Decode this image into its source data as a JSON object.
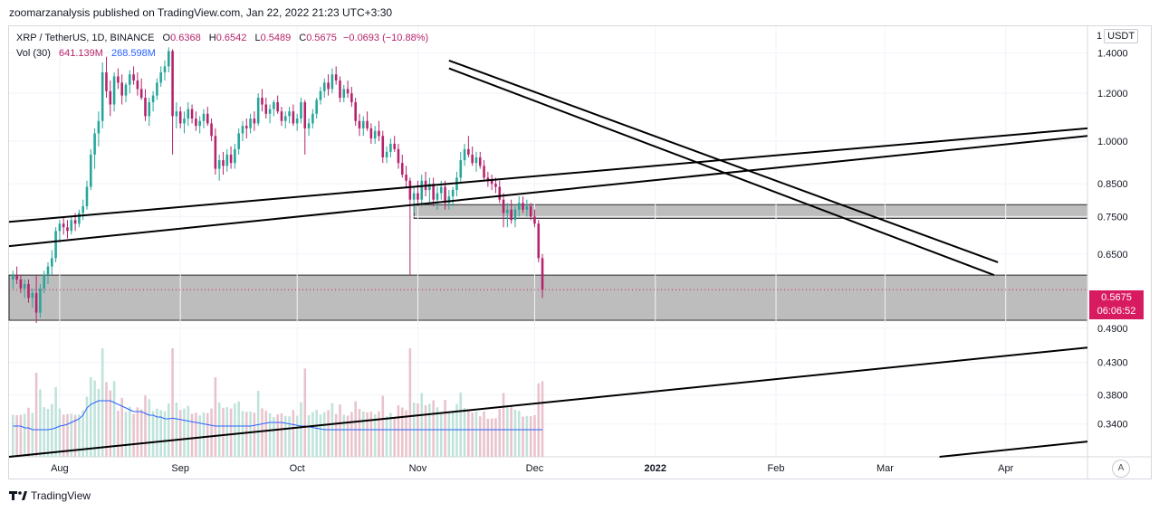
{
  "publisher_line": "zoomarzanalysis published on TradingView.com, Jan 22, 2022 21:23 UTC+3:30",
  "legend": {
    "symbol": "XRP / TetherUS, 1D, BINANCE",
    "open_label": "O",
    "open": "0.6368",
    "high_label": "H",
    "high": "0.6542",
    "low_label": "L",
    "low": "0.5489",
    "close_label": "C",
    "close": "0.5675",
    "change": "−0.0693 (−10.88%)",
    "vol_label": "Vol (30)",
    "vol_value": "641.139M",
    "vol_ma": "268.598M"
  },
  "unit_prefix": "1",
  "unit": "USDT",
  "last_price": "0.5675",
  "countdown": "06:06:52",
  "auto_scale_label": "A",
  "brand": "TradingView",
  "colors": {
    "up": "#26a69a",
    "down": "#b6236b",
    "up_volume": "#bfe3db",
    "down_volume": "#e9c3cc",
    "volume_ma": "#2962ff",
    "zone_fill": "#b2b2b2",
    "trendline": "#000000",
    "price_line": "#d81b60"
  },
  "chart_data": {
    "type": "candlestick",
    "scale": "log",
    "y_ticks": [
      "1.4000",
      "1.2000",
      "1.0000",
      "0.8500",
      "0.7500",
      "0.6500",
      "0.5675",
      "0.4900",
      "0.4300",
      "0.3800",
      "0.3400"
    ],
    "x_ticks": [
      "Aug",
      "Sep",
      "Oct",
      "Nov",
      "Dec",
      "2022",
      "Feb",
      "Mar",
      "Apr"
    ],
    "x_range": [
      "2021-07-19",
      "2022-04-22"
    ],
    "y_range": [
      0.3,
      1.55
    ],
    "zones": [
      {
        "low": 0.505,
        "high": 0.6
      },
      {
        "low": 0.745,
        "high": 0.785
      }
    ],
    "trendlines": [
      {
        "from": [
          "2021-07-19",
          0.735
        ],
        "to": [
          "2022-04-22",
          1.05
        ]
      },
      {
        "from": [
          "2021-07-19",
          0.67
        ],
        "to": [
          "2022-04-22",
          1.02
        ]
      },
      {
        "from": [
          "2021-11-09",
          1.36
        ],
        "to": [
          "2022-03-30",
          0.63
        ]
      },
      {
        "from": [
          "2021-11-09",
          1.32
        ],
        "to": [
          "2022-03-29",
          0.6
        ]
      },
      {
        "from": [
          "2021-07-19",
          0.3
        ],
        "to": [
          "2022-04-22",
          0.455
        ]
      },
      {
        "from": [
          "2022-03-15",
          0.3
        ],
        "to": [
          "2022-04-22",
          0.318
        ]
      }
    ],
    "candles_start": "2021-07-20",
    "ohlc": [
      [
        0.59,
        0.61,
        0.57,
        0.6
      ],
      [
        0.6,
        0.62,
        0.58,
        0.59
      ],
      [
        0.59,
        0.6,
        0.56,
        0.57
      ],
      [
        0.57,
        0.59,
        0.55,
        0.58
      ],
      [
        0.58,
        0.59,
        0.54,
        0.55
      ],
      [
        0.55,
        0.57,
        0.53,
        0.56
      ],
      [
        0.56,
        0.6,
        0.5,
        0.52
      ],
      [
        0.52,
        0.58,
        0.51,
        0.57
      ],
      [
        0.57,
        0.61,
        0.56,
        0.6
      ],
      [
        0.6,
        0.63,
        0.58,
        0.62
      ],
      [
        0.62,
        0.66,
        0.6,
        0.64
      ],
      [
        0.64,
        0.72,
        0.63,
        0.71
      ],
      [
        0.71,
        0.74,
        0.68,
        0.73
      ],
      [
        0.73,
        0.75,
        0.7,
        0.72
      ],
      [
        0.72,
        0.74,
        0.69,
        0.71
      ],
      [
        0.71,
        0.75,
        0.7,
        0.74
      ],
      [
        0.74,
        0.76,
        0.71,
        0.73
      ],
      [
        0.73,
        0.77,
        0.72,
        0.76
      ],
      [
        0.76,
        0.8,
        0.74,
        0.78
      ],
      [
        0.78,
        0.86,
        0.77,
        0.84
      ],
      [
        0.84,
        0.97,
        0.83,
        0.95
      ],
      [
        0.95,
        1.05,
        0.9,
        1.03
      ],
      [
        1.03,
        1.12,
        0.98,
        1.08
      ],
      [
        1.08,
        1.35,
        1.05,
        1.3
      ],
      [
        1.3,
        1.38,
        1.18,
        1.21
      ],
      [
        1.21,
        1.26,
        1.1,
        1.15
      ],
      [
        1.15,
        1.3,
        1.12,
        1.28
      ],
      [
        1.28,
        1.32,
        1.22,
        1.25
      ],
      [
        1.25,
        1.29,
        1.15,
        1.19
      ],
      [
        1.19,
        1.25,
        1.16,
        1.24
      ],
      [
        1.24,
        1.31,
        1.2,
        1.29
      ],
      [
        1.29,
        1.33,
        1.24,
        1.26
      ],
      [
        1.26,
        1.3,
        1.19,
        1.22
      ],
      [
        1.22,
        1.27,
        1.17,
        1.18
      ],
      [
        1.18,
        1.22,
        1.08,
        1.1
      ],
      [
        1.1,
        1.18,
        1.06,
        1.16
      ],
      [
        1.16,
        1.21,
        1.12,
        1.19
      ],
      [
        1.19,
        1.27,
        1.17,
        1.25
      ],
      [
        1.25,
        1.33,
        1.23,
        1.3
      ],
      [
        1.3,
        1.36,
        1.26,
        1.33
      ],
      [
        1.33,
        1.43,
        1.3,
        1.41
      ],
      [
        1.41,
        1.42,
        0.95,
        1.1
      ],
      [
        1.1,
        1.16,
        1.05,
        1.12
      ],
      [
        1.12,
        1.14,
        1.05,
        1.07
      ],
      [
        1.07,
        1.12,
        1.03,
        1.09
      ],
      [
        1.09,
        1.16,
        1.06,
        1.13
      ],
      [
        1.13,
        1.15,
        1.07,
        1.09
      ],
      [
        1.09,
        1.12,
        1.04,
        1.06
      ],
      [
        1.06,
        1.1,
        1.03,
        1.08
      ],
      [
        1.08,
        1.13,
        1.05,
        1.11
      ],
      [
        1.11,
        1.14,
        1.06,
        1.07
      ],
      [
        1.07,
        1.09,
        1.0,
        1.02
      ],
      [
        1.02,
        1.05,
        0.88,
        0.9
      ],
      [
        0.9,
        0.95,
        0.86,
        0.93
      ],
      [
        0.93,
        0.96,
        0.88,
        0.91
      ],
      [
        0.91,
        0.97,
        0.89,
        0.95
      ],
      [
        0.95,
        0.98,
        0.9,
        0.92
      ],
      [
        0.92,
        0.99,
        0.9,
        0.97
      ],
      [
        0.97,
        1.05,
        0.95,
        1.03
      ],
      [
        1.03,
        1.08,
        1.0,
        1.06
      ],
      [
        1.06,
        1.09,
        1.01,
        1.05
      ],
      [
        1.05,
        1.11,
        1.03,
        1.09
      ],
      [
        1.09,
        1.12,
        1.04,
        1.07
      ],
      [
        1.07,
        1.2,
        1.06,
        1.18
      ],
      [
        1.18,
        1.22,
        1.12,
        1.15
      ],
      [
        1.15,
        1.18,
        1.09,
        1.11
      ],
      [
        1.11,
        1.15,
        1.07,
        1.13
      ],
      [
        1.13,
        1.17,
        1.1,
        1.16
      ],
      [
        1.16,
        1.19,
        1.11,
        1.12
      ],
      [
        1.12,
        1.14,
        1.06,
        1.08
      ],
      [
        1.08,
        1.12,
        1.05,
        1.1
      ],
      [
        1.1,
        1.14,
        1.07,
        1.12
      ],
      [
        1.12,
        1.15,
        1.06,
        1.07
      ],
      [
        1.07,
        1.11,
        1.04,
        1.09
      ],
      [
        1.09,
        1.18,
        1.07,
        1.16
      ],
      [
        1.16,
        1.17,
        0.95,
        1.05
      ],
      [
        1.05,
        1.09,
        1.02,
        1.07
      ],
      [
        1.07,
        1.13,
        1.05,
        1.11
      ],
      [
        1.11,
        1.18,
        1.09,
        1.17
      ],
      [
        1.17,
        1.23,
        1.15,
        1.21
      ],
      [
        1.21,
        1.27,
        1.18,
        1.25
      ],
      [
        1.25,
        1.29,
        1.19,
        1.22
      ],
      [
        1.22,
        1.32,
        1.2,
        1.29
      ],
      [
        1.29,
        1.33,
        1.24,
        1.26
      ],
      [
        1.26,
        1.28,
        1.16,
        1.18
      ],
      [
        1.18,
        1.24,
        1.16,
        1.22
      ],
      [
        1.22,
        1.26,
        1.18,
        1.2
      ],
      [
        1.2,
        1.23,
        1.14,
        1.16
      ],
      [
        1.16,
        1.18,
        1.06,
        1.08
      ],
      [
        1.08,
        1.11,
        1.02,
        1.05
      ],
      [
        1.05,
        1.1,
        1.02,
        1.08
      ],
      [
        1.08,
        1.12,
        1.04,
        1.05
      ],
      [
        1.05,
        1.07,
        0.99,
        1.01
      ],
      [
        1.01,
        1.06,
        0.99,
        1.04
      ],
      [
        1.04,
        1.08,
        1.0,
        1.02
      ],
      [
        1.02,
        1.04,
        0.92,
        0.94
      ],
      [
        0.94,
        0.98,
        0.92,
        0.96
      ],
      [
        0.96,
        1.01,
        0.94,
        0.99
      ],
      [
        0.99,
        1.02,
        0.96,
        0.97
      ],
      [
        0.97,
        0.99,
        0.9,
        0.92
      ],
      [
        0.92,
        0.95,
        0.87,
        0.88
      ],
      [
        0.88,
        0.91,
        0.84,
        0.86
      ],
      [
        0.86,
        0.87,
        0.6,
        0.8
      ],
      [
        0.8,
        0.84,
        0.76,
        0.82
      ],
      [
        0.82,
        0.86,
        0.78,
        0.8
      ],
      [
        0.8,
        0.88,
        0.78,
        0.86
      ],
      [
        0.86,
        0.89,
        0.81,
        0.83
      ],
      [
        0.83,
        0.87,
        0.79,
        0.85
      ],
      [
        0.85,
        0.87,
        0.78,
        0.8
      ],
      [
        0.8,
        0.84,
        0.77,
        0.82
      ],
      [
        0.82,
        0.86,
        0.8,
        0.84
      ],
      [
        0.84,
        0.86,
        0.77,
        0.79
      ],
      [
        0.79,
        0.83,
        0.77,
        0.81
      ],
      [
        0.81,
        0.84,
        0.78,
        0.83
      ],
      [
        0.83,
        0.89,
        0.81,
        0.87
      ],
      [
        0.87,
        0.96,
        0.85,
        0.93
      ],
      [
        0.93,
        0.99,
        0.91,
        0.97
      ],
      [
        0.97,
        1.02,
        0.94,
        0.95
      ],
      [
        0.95,
        0.98,
        0.91,
        0.92
      ],
      [
        0.92,
        0.96,
        0.89,
        0.94
      ],
      [
        0.94,
        0.96,
        0.9,
        0.91
      ],
      [
        0.91,
        0.93,
        0.86,
        0.87
      ],
      [
        0.87,
        0.89,
        0.84,
        0.86
      ],
      [
        0.86,
        0.88,
        0.83,
        0.85
      ],
      [
        0.85,
        0.87,
        0.82,
        0.84
      ],
      [
        0.84,
        0.86,
        0.79,
        0.8
      ],
      [
        0.8,
        0.82,
        0.72,
        0.76
      ],
      [
        0.76,
        0.79,
        0.72,
        0.77
      ],
      [
        0.77,
        0.8,
        0.73,
        0.74
      ],
      [
        0.74,
        0.78,
        0.72,
        0.77
      ],
      [
        0.77,
        0.81,
        0.75,
        0.79
      ],
      [
        0.79,
        0.81,
        0.76,
        0.77
      ],
      [
        0.77,
        0.8,
        0.75,
        0.78
      ],
      [
        0.78,
        0.79,
        0.74,
        0.75
      ],
      [
        0.75,
        0.77,
        0.72,
        0.73
      ],
      [
        0.73,
        0.74,
        0.63,
        0.64
      ],
      [
        0.64,
        0.65,
        0.55,
        0.5675
      ]
    ],
    "volume_ma": [
      0.36,
      0.36,
      0.36,
      0.355,
      0.355,
      0.35,
      0.35,
      0.35,
      0.35,
      0.35,
      0.352,
      0.355,
      0.36,
      0.362,
      0.365,
      0.37,
      0.375,
      0.38,
      0.39,
      0.41,
      0.42,
      0.425,
      0.43,
      0.43,
      0.43,
      0.43,
      0.425,
      0.42,
      0.415,
      0.41,
      0.405,
      0.4,
      0.4,
      0.4,
      0.395,
      0.39,
      0.39,
      0.385,
      0.385,
      0.38,
      0.38,
      0.382,
      0.38,
      0.378,
      0.376,
      0.374,
      0.372,
      0.37,
      0.368,
      0.366,
      0.364,
      0.362,
      0.36,
      0.36,
      0.36,
      0.36,
      0.36,
      0.36,
      0.36,
      0.36,
      0.36,
      0.36,
      0.362,
      0.364,
      0.366,
      0.368,
      0.37,
      0.37,
      0.37,
      0.37,
      0.368,
      0.366,
      0.364,
      0.362,
      0.36,
      0.36,
      0.358,
      0.356,
      0.354,
      0.352,
      0.35,
      0.35,
      0.35,
      0.35,
      0.35,
      0.35,
      0.35,
      0.35,
      0.35,
      0.35,
      0.35,
      0.35,
      0.35,
      0.35,
      0.35,
      0.35,
      0.35,
      0.35,
      0.35,
      0.35,
      0.35,
      0.35,
      0.35,
      0.35,
      0.35,
      0.35,
      0.35,
      0.35,
      0.35,
      0.35,
      0.35,
      0.35,
      0.35,
      0.35,
      0.35,
      0.35,
      0.35,
      0.35,
      0.35,
      0.35,
      0.35,
      0.35,
      0.35,
      0.35,
      0.35,
      0.35,
      0.35,
      0.35,
      0.35,
      0.35,
      0.35,
      0.35,
      0.35,
      0.35,
      0.35,
      0.35,
      0.35,
      0.35,
      0.35,
      0.35,
      0.35,
      0.35,
      0.35,
      0.35,
      0.35,
      0.35,
      0.35,
      0.35,
      0.35,
      0.35,
      0.35,
      0.35,
      0.35,
      0.35,
      0.35,
      0.35,
      0.35,
      0.35,
      0.35,
      0.35,
      0.35,
      0.35,
      0.35,
      0.35,
      0.35,
      0.35,
      0.35,
      0.35,
      0.35,
      0.35,
      0.35,
      0.35,
      0.35,
      0.35,
      0.35,
      0.35,
      0.35
    ]
  }
}
